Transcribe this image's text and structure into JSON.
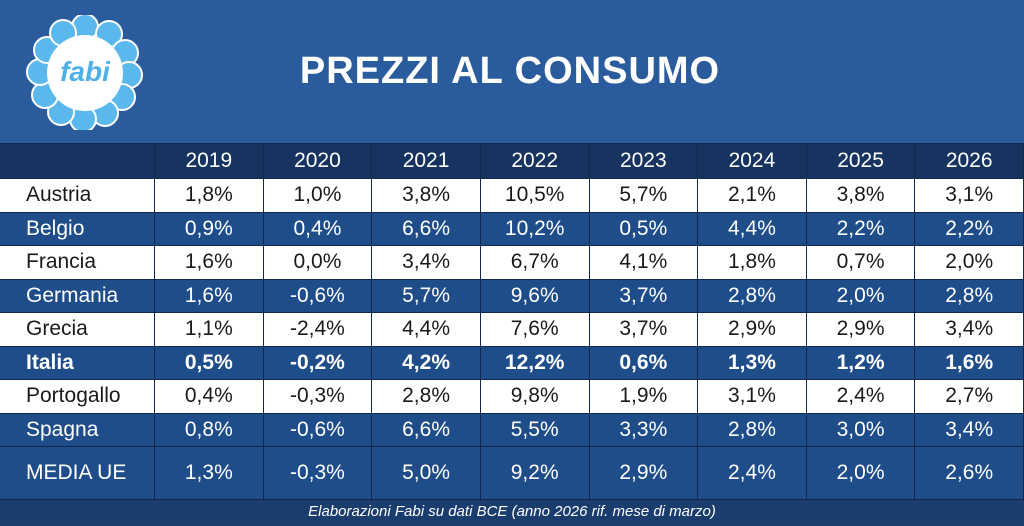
{
  "header": {
    "logo": "fabi",
    "title": "PREZZI AL CONSUMO"
  },
  "table": {
    "columns": [
      "2019",
      "2020",
      "2021",
      "2022",
      "2023",
      "2024",
      "2025",
      "2026"
    ],
    "rows": [
      [
        "Austria",
        "1,8%",
        "1,0%",
        "3,8%",
        "10,5%",
        "5,7%",
        "2,1%",
        "3,8%",
        "3,1%"
      ],
      [
        "Belgio",
        "0,9%",
        "0,4%",
        "6,6%",
        "10,2%",
        "0,5%",
        "4,4%",
        "2,2%",
        "2,2%"
      ],
      [
        "Francia",
        "1,6%",
        "0,0%",
        "3,4%",
        "6,7%",
        "4,1%",
        "1,8%",
        "0,7%",
        "2,0%"
      ],
      [
        "Germania",
        "1,6%",
        "-0,6%",
        "5,7%",
        "9,6%",
        "3,7%",
        "2,8%",
        "2,0%",
        "2,8%"
      ],
      [
        "Grecia",
        "1,1%",
        "-2,4%",
        "4,4%",
        "7,6%",
        "3,7%",
        "2,9%",
        "2,9%",
        "3,4%"
      ],
      [
        "Italia",
        "0,5%",
        "-0,2%",
        "4,2%",
        "12,2%",
        "0,6%",
        "1,3%",
        "1,2%",
        "1,6%"
      ],
      [
        "Portogallo",
        "0,4%",
        "-0,3%",
        "2,8%",
        "9,8%",
        "1,9%",
        "3,1%",
        "2,4%",
        "2,7%"
      ],
      [
        "Spagna",
        "0,8%",
        "-0,6%",
        "6,6%",
        "5,5%",
        "3,3%",
        "2,8%",
        "3,0%",
        "3,4%"
      ],
      [
        "MEDIA UE",
        "1,3%",
        "-0,3%",
        "5,0%",
        "9,2%",
        "2,9%",
        "2,4%",
        "2,0%",
        "2,6%"
      ]
    ]
  },
  "footer": "Elaborazioni Fabi su dati BCE  (anno 2026 rif. mese di marzo)"
}
